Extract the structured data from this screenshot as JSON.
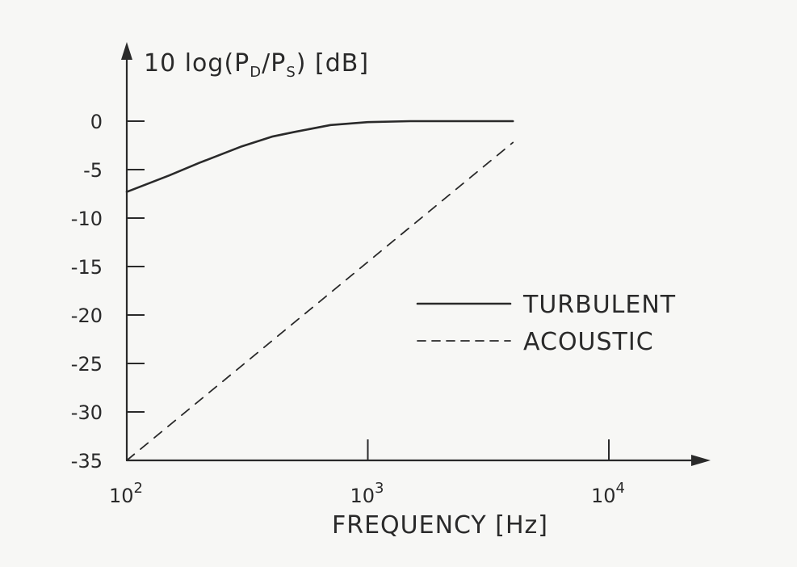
{
  "chart_data": {
    "type": "line",
    "title": "",
    "ylabel": "10 log(P_D/P_S) [dB]",
    "ylabel_parts": {
      "prefix": "10 log(P",
      "sub_d": "D",
      "sep": "/P",
      "sub_s": "S",
      "suffix": ") [dB]"
    },
    "xlabel": "FREQUENCY [Hz]",
    "x_scale": "log",
    "xlim": [
      100,
      25000
    ],
    "ylim": [
      -35,
      0
    ],
    "x_ticks": [
      {
        "value": 100,
        "base": "10",
        "exp": "2"
      },
      {
        "value": 1000,
        "base": "10",
        "exp": "3"
      },
      {
        "value": 10000,
        "base": "10",
        "exp": "4"
      }
    ],
    "y_ticks": [
      {
        "value": 0,
        "label": "0"
      },
      {
        "value": -5,
        "label": "-5"
      },
      {
        "value": -10,
        "label": "-10"
      },
      {
        "value": -15,
        "label": "-15"
      },
      {
        "value": -20,
        "label": "-20"
      },
      {
        "value": -25,
        "label": "-25"
      },
      {
        "value": -30,
        "label": "-30"
      },
      {
        "value": -35,
        "label": "-35"
      }
    ],
    "grid": false,
    "legend_position": "right",
    "series": [
      {
        "name": "TURBULENT",
        "style": "solid",
        "color": "#2a2a2a",
        "x": [
          100,
          150,
          200,
          300,
          400,
          500,
          700,
          1000,
          1500,
          2000,
          3000,
          4000
        ],
        "y": [
          -7.3,
          -5.6,
          -4.3,
          -2.6,
          -1.6,
          -1.1,
          -0.4,
          -0.1,
          0,
          0,
          0,
          0
        ]
      },
      {
        "name": "ACOUSTIC",
        "style": "dashed",
        "color": "#2a2a2a",
        "x": [
          100,
          4000
        ],
        "y": [
          -35,
          -2.2
        ]
      }
    ]
  }
}
